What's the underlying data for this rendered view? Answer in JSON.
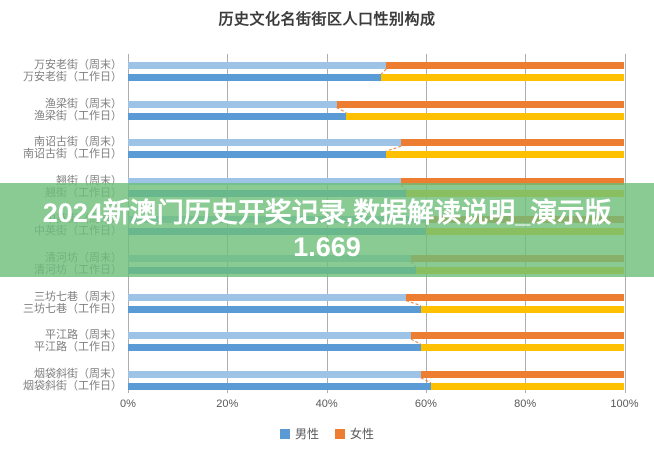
{
  "title": "历史文化名街街区人口性别构成",
  "watermark": {
    "line1": "2024新澳门历史开奖记录,数据解读说明_演示版",
    "line2": "1.669"
  },
  "legend": {
    "items": [
      {
        "label": "男性",
        "color": "#5B9BD5"
      },
      {
        "label": "女性",
        "color": "#ED7D31"
      }
    ]
  },
  "colors": {
    "male_weekend": "#9DC3E6",
    "male_workday": "#5B9BD5",
    "female_weekend": "#ED7D31",
    "female_workday": "#FFC000",
    "connector": "#ED7D31",
    "gridline": "#AEAEAE"
  },
  "chart_data": {
    "type": "bar",
    "orientation": "horizontal",
    "stacked": true,
    "title": "历史文化名街街区人口性别构成",
    "xlabel": "",
    "ylabel": "",
    "xlim": [
      0,
      100
    ],
    "x_ticks": [
      "0%",
      "20%",
      "40%",
      "60%",
      "80%",
      "100%"
    ],
    "grid": true,
    "legend_position": "bottom",
    "categories": [
      "万安老街（周末）",
      "万安老街（工作日）",
      "渔梁街（周末）",
      "渔梁街（工作日）",
      "南诏古街（周末）",
      "南诏古街（工作日）",
      "翘街（周末）",
      "翘街（工作日）",
      "中英街（周末）",
      "中英街（工作日）",
      "清河坊（周末）",
      "清河坊（工作日）",
      "三坊七巷（周末）",
      "三坊七巷（工作日）",
      "平江路（周末）",
      "平江路（工作日）",
      "烟袋斜街（周末）",
      "烟袋斜街（工作日）"
    ],
    "series": [
      {
        "name": "男性",
        "values": [
          52,
          51,
          42,
          44,
          55,
          52,
          55,
          56,
          60,
          60,
          57,
          58,
          56,
          59,
          57,
          59,
          59,
          61
        ]
      },
      {
        "name": "女性",
        "values": [
          48,
          49,
          58,
          56,
          45,
          48,
          45,
          44,
          40,
          40,
          43,
          42,
          44,
          41,
          43,
          41,
          41,
          39
        ]
      }
    ]
  }
}
